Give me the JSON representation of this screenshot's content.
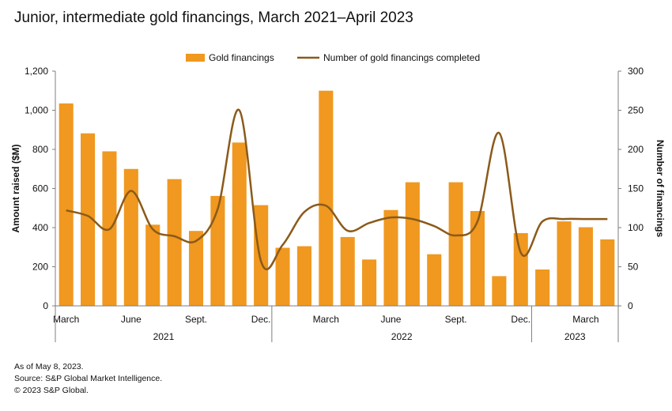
{
  "title": "Junior, intermediate gold financings, March 2021–April 2023",
  "footnotes": {
    "as_of": "As of May 8, 2023.",
    "source": "Source: S&P Global Market Intelligence.",
    "copyright": "© 2023 S&P Global."
  },
  "chart_data": {
    "type": "bar",
    "legend_position": "top-center",
    "colors": {
      "bar": "#F0981F",
      "line": "#8B5A1A"
    },
    "grid": false,
    "categories": [
      "Mar 2021",
      "Apr 2021",
      "May 2021",
      "Jun 2021",
      "Jul 2021",
      "Aug 2021",
      "Sep 2021",
      "Oct 2021",
      "Nov 2021",
      "Dec 2021",
      "Jan 2022",
      "Feb 2022",
      "Mar 2022",
      "Apr 2022",
      "May 2022",
      "Jun 2022",
      "Jul 2022",
      "Aug 2022",
      "Sep 2022",
      "Oct 2022",
      "Nov 2022",
      "Dec 2022",
      "Jan 2023",
      "Feb 2023",
      "Mar 2023",
      "Apr 2023"
    ],
    "series": [
      {
        "name": "Gold financings",
        "type": "bar",
        "axis": "left",
        "values": [
          1035,
          882,
          790,
          700,
          415,
          648,
          383,
          562,
          835,
          515,
          297,
          305,
          1100,
          352,
          237,
          490,
          632,
          264,
          632,
          485,
          152,
          372,
          186,
          432,
          402,
          340
        ]
      },
      {
        "name": "Number of gold financings completed",
        "type": "line",
        "axis": "right",
        "values": [
          122,
          115,
          98,
          147,
          98,
          89,
          83,
          124,
          250,
          57,
          78,
          120,
          128,
          96,
          106,
          113,
          111,
          102,
          90,
          108,
          221,
          68,
          108,
          111,
          111,
          111
        ]
      }
    ],
    "y_left": {
      "label": "Amount raised ($M)",
      "ylim": [
        0,
        1200
      ],
      "ticks": [
        "0",
        "200",
        "400",
        "600",
        "800",
        "1,000",
        "1,200"
      ]
    },
    "y_right": {
      "label": "Number of financings",
      "ylim": [
        0,
        300
      ],
      "ticks": [
        "0",
        "50",
        "100",
        "150",
        "200",
        "250",
        "300"
      ]
    },
    "x_tick_labels": [
      {
        "index": 0,
        "text": "March"
      },
      {
        "index": 3,
        "text": "June"
      },
      {
        "index": 6,
        "text": "Sept."
      },
      {
        "index": 9,
        "text": "Dec."
      },
      {
        "index": 12,
        "text": "March"
      },
      {
        "index": 15,
        "text": "June"
      },
      {
        "index": 18,
        "text": "Sept."
      },
      {
        "index": 21,
        "text": "Dec."
      },
      {
        "index": 24,
        "text": "March"
      }
    ],
    "year_groups": [
      {
        "text": "2021",
        "start": 0,
        "end": 9
      },
      {
        "text": "2022",
        "start": 10,
        "end": 21
      },
      {
        "text": "2023",
        "start": 22,
        "end": 25
      }
    ]
  }
}
